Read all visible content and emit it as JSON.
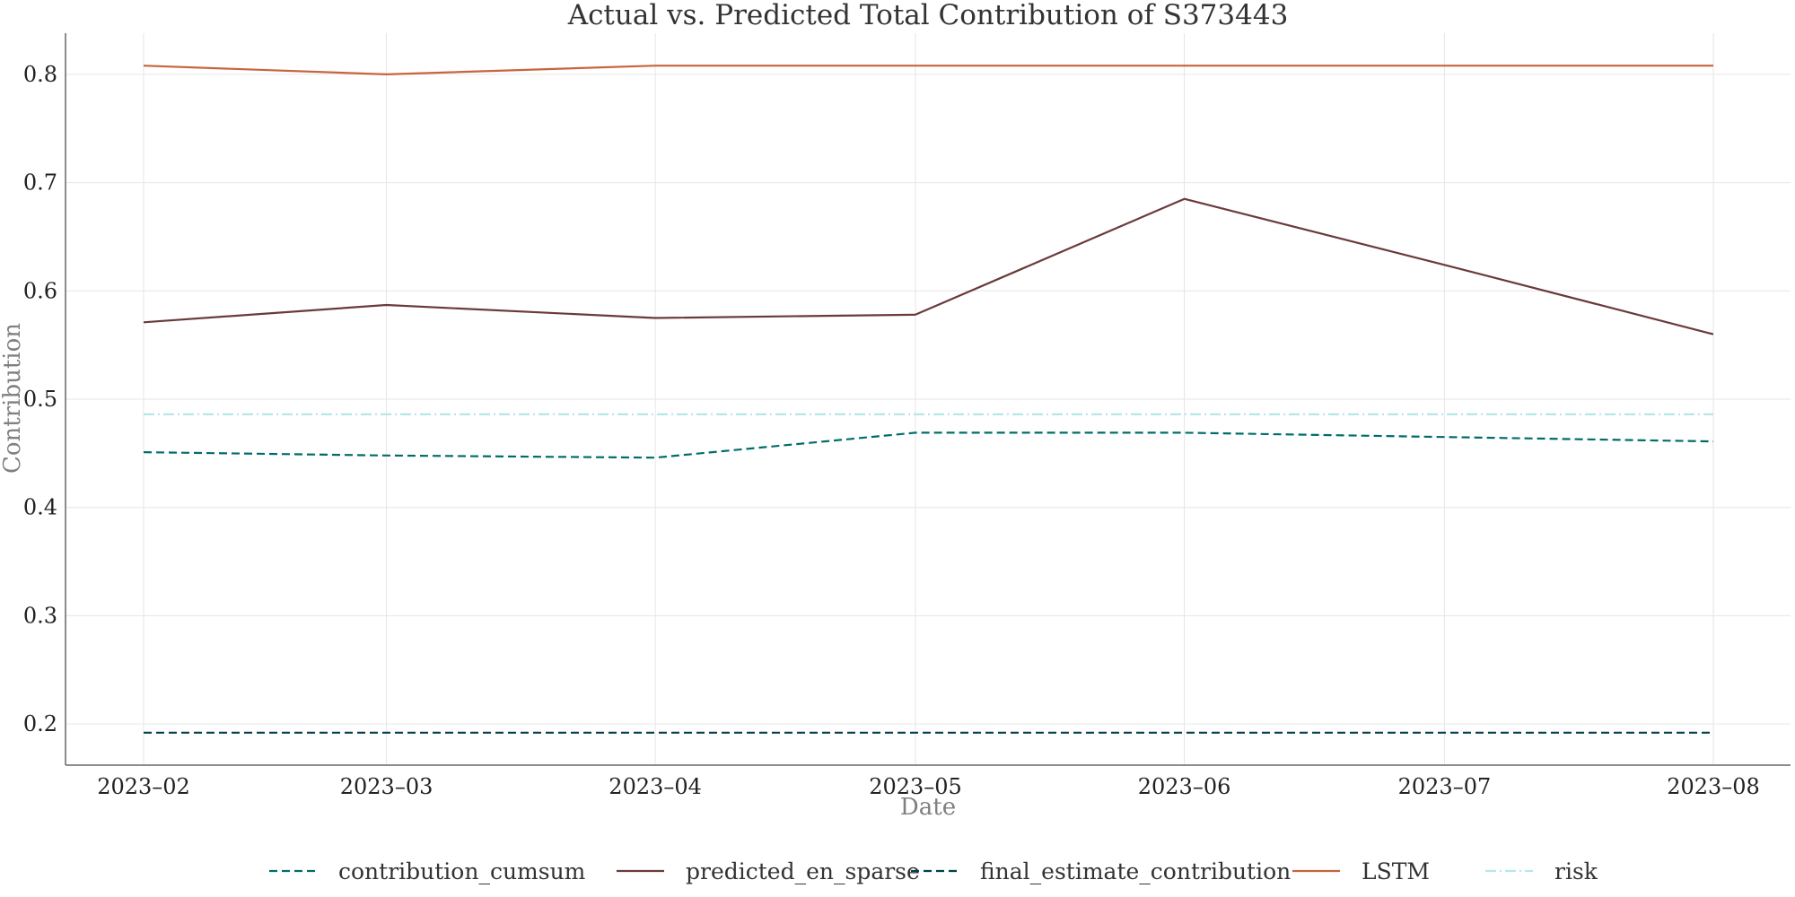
{
  "chart_data": {
    "type": "line",
    "title": "Actual vs. Predicted Total Contribution of S373443",
    "xlabel": "Date",
    "ylabel": "Contribution",
    "x": [
      "2023-02-01",
      "2023-03-01",
      "2023-04-01",
      "2023-05-01",
      "2023-06-01",
      "2023-07-01",
      "2023-08-01"
    ],
    "x_tick_labels": [
      "2023–02",
      "2023–03",
      "2023–04",
      "2023–05",
      "2023–06",
      "2023–07",
      "2023–08"
    ],
    "y_ticks": [
      "0.2",
      "0.3",
      "0.4",
      "0.5",
      "0.6",
      "0.7",
      "0.8"
    ],
    "ylim": [
      0.162,
      0.838
    ],
    "grid": true,
    "legend_position": "bottom-center",
    "series": [
      {
        "name": "contribution_cumsum",
        "color": "#006d6a",
        "dash": "dashed",
        "values": [
          0.451,
          0.448,
          0.446,
          0.469,
          0.469,
          0.465,
          0.461
        ]
      },
      {
        "name": "predicted_en_sparse",
        "color": "#6b3a3a",
        "dash": "solid",
        "values": [
          0.571,
          0.587,
          0.575,
          0.578,
          0.685,
          0.624,
          0.56
        ]
      },
      {
        "name": "final_estimate_contribution",
        "color": "#003f4d",
        "dash": "dashed",
        "values": [
          0.192,
          0.192,
          0.192,
          0.192,
          0.192,
          0.192,
          0.192
        ]
      },
      {
        "name": "LSTM",
        "color": "#c8643c",
        "dash": "solid",
        "values": [
          0.808,
          0.8,
          0.808,
          0.808,
          0.808,
          0.808,
          0.808
        ]
      },
      {
        "name": "risk",
        "color": "#b8e6e6",
        "dash": "dashdot",
        "values": [
          0.486,
          0.486,
          0.486,
          0.486,
          0.486,
          0.486,
          0.486
        ]
      }
    ]
  }
}
